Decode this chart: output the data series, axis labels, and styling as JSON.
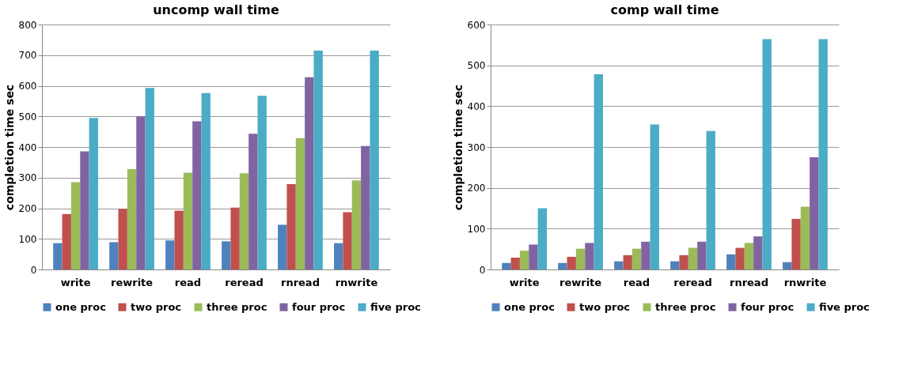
{
  "chart_data": [
    {
      "type": "bar",
      "title": "uncomp wall time",
      "ylabel": "completion time  sec",
      "categories": [
        "write",
        "rewrite",
        "read",
        "reread",
        "rnread",
        "rnwrite"
      ],
      "ylim": [
        0,
        800
      ],
      "yticks": [
        0,
        100,
        200,
        300,
        400,
        500,
        600,
        700,
        800
      ],
      "grid": "y",
      "legend": "bottom",
      "series": [
        {
          "name": "one proc",
          "color": "#4f81bd",
          "values": [
            86,
            89,
            95,
            92,
            146,
            86
          ]
        },
        {
          "name": "two proc",
          "color": "#c0504d",
          "values": [
            181,
            198,
            192,
            202,
            279,
            187
          ]
        },
        {
          "name": "three proc",
          "color": "#9bbb59",
          "values": [
            285,
            328,
            316,
            314,
            429,
            291
          ]
        },
        {
          "name": "four proc",
          "color": "#8064a2",
          "values": [
            386,
            500,
            484,
            443,
            628,
            403
          ]
        },
        {
          "name": "five proc",
          "color": "#4bacc6",
          "values": [
            495,
            593,
            576,
            567,
            715,
            715
          ]
        }
      ]
    },
    {
      "type": "bar",
      "title": "comp wall time",
      "ylabel": "completion time  sec",
      "categories": [
        "write",
        "rewrite",
        "read",
        "reread",
        "rnread",
        "rnwrite"
      ],
      "ylim": [
        0,
        600
      ],
      "yticks": [
        0,
        100,
        200,
        300,
        400,
        500,
        600
      ],
      "grid": "y",
      "legend": "bottom",
      "series": [
        {
          "name": "one proc",
          "color": "#4f81bd",
          "values": [
            16,
            16,
            20,
            20,
            37,
            18
          ]
        },
        {
          "name": "two proc",
          "color": "#c0504d",
          "values": [
            29,
            31,
            35,
            35,
            53,
            124
          ]
        },
        {
          "name": "three proc",
          "color": "#9bbb59",
          "values": [
            46,
            51,
            51,
            53,
            65,
            154
          ]
        },
        {
          "name": "four proc",
          "color": "#8064a2",
          "values": [
            61,
            65,
            68,
            68,
            81,
            275
          ]
        },
        {
          "name": "five proc",
          "color": "#4bacc6",
          "values": [
            150,
            478,
            355,
            339,
            564,
            564
          ]
        }
      ]
    }
  ]
}
